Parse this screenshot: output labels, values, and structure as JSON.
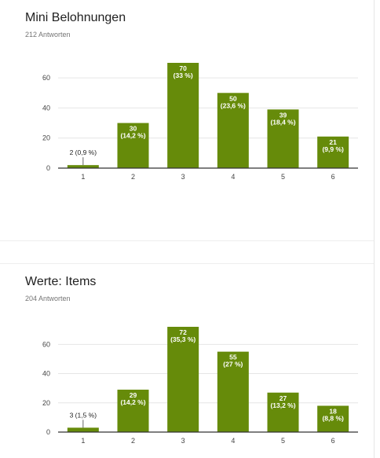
{
  "colors": {
    "bar": "#668b0a",
    "grid": "#e6e6e6",
    "axis": "#333333"
  },
  "charts": [
    {
      "title": "Mini Belohnungen",
      "responses": "212 Antworten",
      "chart_data": {
        "type": "bar",
        "categories": [
          "1",
          "2",
          "3",
          "4",
          "5",
          "6"
        ],
        "values": [
          2,
          30,
          70,
          50,
          39,
          21
        ],
        "data_labels": [
          [
            "2 (0,9 %)"
          ],
          [
            "30",
            "(14,2 %)"
          ],
          [
            "70",
            "(33 %)"
          ],
          [
            "50",
            "(23,6 %)"
          ],
          [
            "39",
            "(18,4 %)"
          ],
          [
            "21",
            "(9,9 %)"
          ]
        ],
        "yticks": [
          0,
          20,
          40,
          60
        ],
        "ylim": [
          0,
          70
        ],
        "grid": true
      }
    },
    {
      "title": "Werte: Items",
      "responses": "204 Antworten",
      "chart_data": {
        "type": "bar",
        "categories": [
          "1",
          "2",
          "3",
          "4",
          "5",
          "6"
        ],
        "values": [
          3,
          29,
          72,
          55,
          27,
          18
        ],
        "data_labels": [
          [
            "3 (1,5 %)"
          ],
          [
            "29",
            "(14,2 %)"
          ],
          [
            "72",
            "(35,3 %)"
          ],
          [
            "55",
            "(27 %)"
          ],
          [
            "27",
            "(13,2 %)"
          ],
          [
            "18",
            "(8,8 %)"
          ]
        ],
        "yticks": [
          0,
          20,
          40,
          60
        ],
        "ylim": [
          0,
          72
        ],
        "grid": true
      }
    }
  ]
}
